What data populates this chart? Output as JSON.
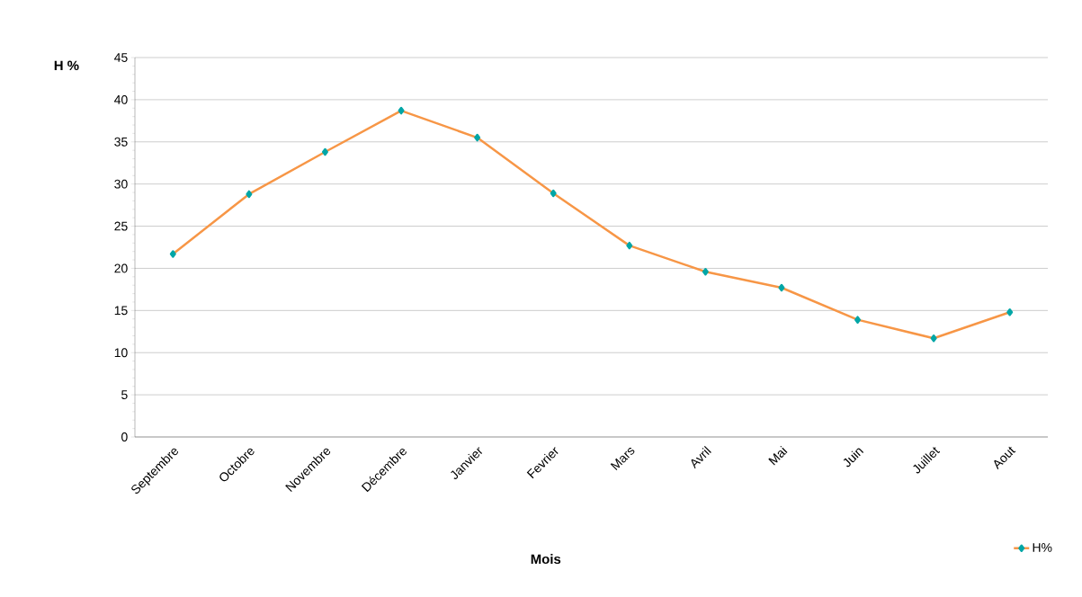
{
  "chart_data": {
    "type": "line",
    "xlabel": "Mois",
    "ylabel": "H %",
    "categories": [
      "Septembre",
      "Octobre",
      "Novembre",
      "Décembre",
      "Janvier",
      "Fevrier",
      "Mars",
      "Avril",
      "Mai",
      "Juin",
      "Juillet",
      "Aout"
    ],
    "series": [
      {
        "name": "H%",
        "color": "#f79646",
        "values": [
          21.7,
          28.8,
          33.8,
          38.7,
          35.5,
          28.9,
          22.7,
          19.6,
          17.7,
          13.9,
          11.7,
          14.8
        ]
      }
    ],
    "ylim": [
      0,
      45
    ],
    "yticks": [
      0,
      5,
      10,
      15,
      20,
      25,
      30,
      35,
      40,
      45
    ],
    "grid": "y",
    "legend": "bottom right",
    "marker": "diamond",
    "line_style": "solid"
  }
}
